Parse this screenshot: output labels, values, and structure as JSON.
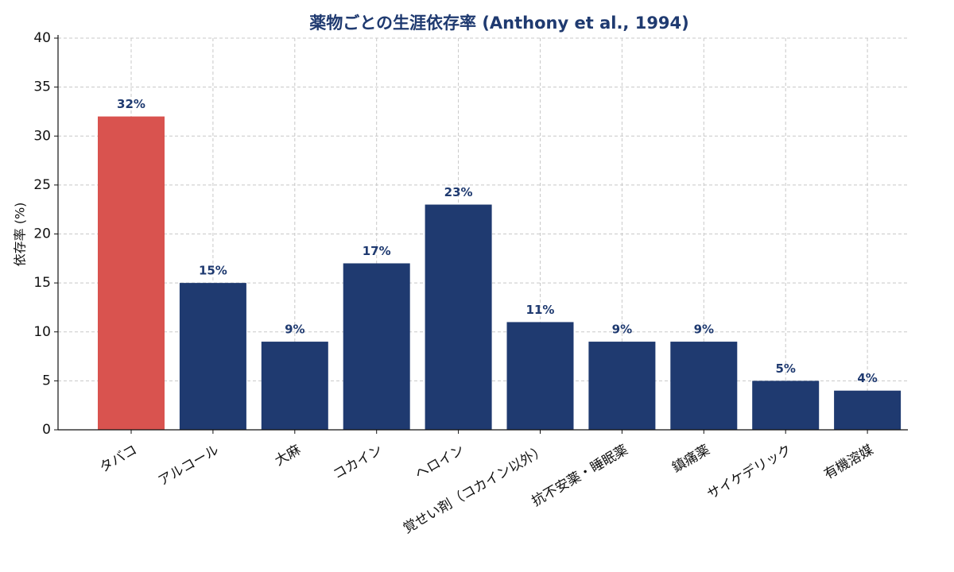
{
  "chart_data": {
    "type": "bar",
    "title": "薬物ごとの生涯依存率 (Anthony et al., 1994)",
    "ylabel": "依存率 (%)",
    "categories": [
      "タバコ",
      "アルコール",
      "大麻",
      "コカイン",
      "ヘロイン",
      "覚せい剤（コカイン以外）",
      "抗不安薬・睡眠薬",
      "鎮痛薬",
      "サイケデリック",
      "有機溶媒"
    ],
    "values": [
      32,
      15,
      9,
      17,
      23,
      11,
      9,
      9,
      5,
      4
    ],
    "value_labels": [
      "32%",
      "15%",
      "9%",
      "17%",
      "23%",
      "11%",
      "9%",
      "9%",
      "5%",
      "4%"
    ],
    "colors": [
      "#d9534f",
      "#1f3a70",
      "#1f3a70",
      "#1f3a70",
      "#1f3a70",
      "#1f3a70",
      "#1f3a70",
      "#1f3a70",
      "#1f3a70",
      "#1f3a70"
    ],
    "ylim": [
      0,
      40
    ],
    "yticks": [
      0,
      5,
      10,
      15,
      20,
      25,
      30,
      35,
      40
    ],
    "grid": true
  }
}
